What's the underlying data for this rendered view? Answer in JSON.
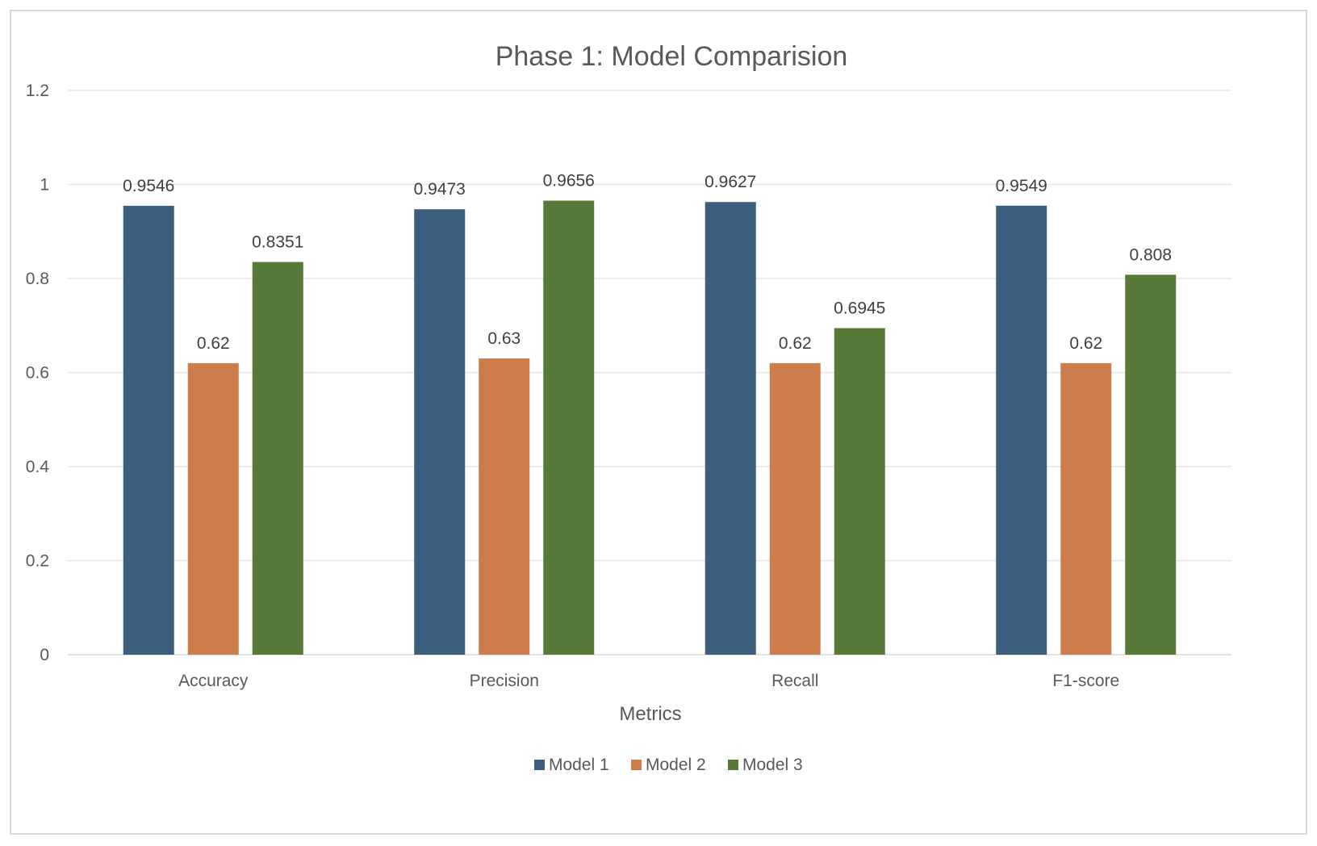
{
  "chart_data": {
    "type": "bar",
    "title": "Phase 1: Model Comparision",
    "xlabel": "Metrics",
    "ylabel": "",
    "ylim": [
      0,
      1.2
    ],
    "yticks": [
      "0",
      "0.2",
      "0.4",
      "0.6",
      "0.8",
      "1",
      "1.2"
    ],
    "ytick_values": [
      0,
      0.2,
      0.4,
      0.6,
      0.8,
      1.0,
      1.2
    ],
    "grid": true,
    "legend_position": "bottom",
    "categories": [
      "Accuracy",
      "Precision",
      "Recall",
      "F1-score"
    ],
    "series": [
      {
        "name": "Model 1",
        "color": "#3b5e7e",
        "values": [
          0.9546,
          0.9473,
          0.9627,
          0.9549
        ],
        "labels": [
          "0.9546",
          "0.9473",
          "0.9627",
          "0.9549"
        ]
      },
      {
        "name": "Model 2",
        "color": "#cd7d4c",
        "values": [
          0.62,
          0.63,
          0.62,
          0.62
        ],
        "labels": [
          "0.62",
          "0.63",
          "0.62",
          "0.62"
        ]
      },
      {
        "name": "Model 3",
        "color": "#577a39",
        "values": [
          0.8351,
          0.9656,
          0.6945,
          0.808
        ],
        "labels": [
          "0.8351",
          "0.9656",
          "0.6945",
          "0.808"
        ]
      }
    ]
  }
}
